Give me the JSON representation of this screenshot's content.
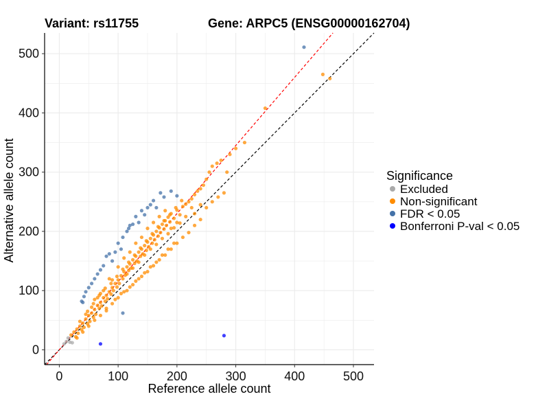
{
  "header": {
    "variant_title": "Variant: rs11755",
    "gene_title": "Gene: ARPC5 (ENSG00000162704)"
  },
  "chart_data": {
    "type": "scatter",
    "xlabel": "Reference allele count",
    "ylabel": "Alternative allele count",
    "xlim": [
      -25,
      535
    ],
    "ylim": [
      -25,
      535
    ],
    "x_ticks": [
      0,
      100,
      200,
      300,
      400,
      500
    ],
    "y_ticks": [
      0,
      100,
      200,
      300,
      400,
      500
    ],
    "grid": true,
    "legend_position": "right",
    "legend": {
      "title": "Significance",
      "entries": [
        {
          "label": "Excluded",
          "color": "#aaaaaa"
        },
        {
          "label": "Non-significant",
          "color": "#ff8c00"
        },
        {
          "label": "FDR < 0.05",
          "color": "#4472a8"
        },
        {
          "label": "Bonferroni P-val < 0.05",
          "color": "#0000ff"
        }
      ]
    },
    "reference_lines": [
      {
        "name": "identity",
        "slope": 1,
        "intercept": 0,
        "color": "#000000",
        "style": "dashed"
      },
      {
        "name": "fitted",
        "slope": 1.15,
        "intercept": 0,
        "color": "#ff0000",
        "style": "dashed"
      }
    ],
    "series": [
      {
        "name": "Excluded",
        "color": "#aaaaaa",
        "points": [
          [
            8,
            10
          ],
          [
            12,
            14
          ],
          [
            18,
            13
          ],
          [
            15,
            20
          ],
          [
            22,
            12
          ]
        ]
      },
      {
        "name": "Non-significant",
        "color": "#ff8c00",
        "points": [
          [
            20,
            25
          ],
          [
            25,
            30
          ],
          [
            28,
            22
          ],
          [
            30,
            35
          ],
          [
            32,
            28
          ],
          [
            35,
            40
          ],
          [
            38,
            34
          ],
          [
            40,
            45
          ],
          [
            42,
            38
          ],
          [
            45,
            52
          ],
          [
            48,
            44
          ],
          [
            50,
            58
          ],
          [
            52,
            48
          ],
          [
            55,
            62
          ],
          [
            58,
            55
          ],
          [
            60,
            68
          ],
          [
            62,
            60
          ],
          [
            65,
            75
          ],
          [
            68,
            70
          ],
          [
            70,
            80
          ],
          [
            72,
            74
          ],
          [
            75,
            88
          ],
          [
            78,
            82
          ],
          [
            80,
            92
          ],
          [
            82,
            86
          ],
          [
            85,
            98
          ],
          [
            88,
            94
          ],
          [
            90,
            105
          ],
          [
            92,
            100
          ],
          [
            95,
            112
          ],
          [
            98,
            106
          ],
          [
            100,
            118
          ],
          [
            102,
            112
          ],
          [
            105,
            125
          ],
          [
            108,
            120
          ],
          [
            110,
            132
          ],
          [
            112,
            126
          ],
          [
            115,
            140
          ],
          [
            118,
            134
          ],
          [
            120,
            145
          ],
          [
            122,
            138
          ],
          [
            125,
            152
          ],
          [
            128,
            146
          ],
          [
            130,
            158
          ],
          [
            132,
            150
          ],
          [
            135,
            165
          ],
          [
            138,
            158
          ],
          [
            140,
            170
          ],
          [
            142,
            162
          ],
          [
            145,
            176
          ],
          [
            148,
            168
          ],
          [
            150,
            182
          ],
          [
            152,
            174
          ],
          [
            155,
            188
          ],
          [
            158,
            180
          ],
          [
            160,
            194
          ],
          [
            162,
            186
          ],
          [
            165,
            200
          ],
          [
            168,
            192
          ],
          [
            170,
            206
          ],
          [
            172,
            198
          ],
          [
            175,
            212
          ],
          [
            178,
            204
          ],
          [
            180,
            218
          ],
          [
            182,
            210
          ],
          [
            185,
            224
          ],
          [
            188,
            216
          ],
          [
            190,
            230
          ],
          [
            195,
            222
          ],
          [
            200,
            236
          ],
          [
            205,
            228
          ],
          [
            210,
            242
          ],
          [
            215,
            246
          ],
          [
            220,
            250
          ],
          [
            225,
            255
          ],
          [
            230,
            262
          ],
          [
            235,
            268
          ],
          [
            240,
            272
          ],
          [
            245,
            278
          ],
          [
            250,
            288
          ],
          [
            255,
            300
          ],
          [
            260,
            310
          ],
          [
            268,
            315
          ],
          [
            275,
            320
          ],
          [
            285,
            300
          ],
          [
            290,
            330
          ],
          [
            300,
            340
          ],
          [
            315,
            350
          ],
          [
            350,
            408
          ],
          [
            448,
            465
          ],
          [
            460,
            458
          ],
          [
            80,
            70
          ],
          [
            95,
            85
          ],
          [
            105,
            95
          ],
          [
            115,
            100
          ],
          [
            125,
            110
          ],
          [
            135,
            120
          ],
          [
            145,
            130
          ],
          [
            155,
            140
          ],
          [
            165,
            148
          ],
          [
            175,
            160
          ],
          [
            185,
            170
          ],
          [
            195,
            180
          ],
          [
            60,
            85
          ],
          [
            70,
            95
          ],
          [
            85,
            120
          ],
          [
            100,
            140
          ],
          [
            110,
            155
          ],
          [
            120,
            165
          ],
          [
            130,
            180
          ],
          [
            140,
            190
          ],
          [
            150,
            205
          ],
          [
            160,
            215
          ],
          [
            170,
            225
          ],
          [
            180,
            235
          ],
          [
            45,
            60
          ],
          [
            55,
            72
          ],
          [
            65,
            88
          ],
          [
            75,
            100
          ],
          [
            90,
            118
          ],
          [
            50,
            40
          ],
          [
            60,
            50
          ],
          [
            70,
            58
          ],
          [
            80,
            66
          ],
          [
            90,
            78
          ],
          [
            100,
            88
          ],
          [
            110,
            98
          ],
          [
            120,
            106
          ],
          [
            130,
            116
          ],
          [
            140,
            124
          ],
          [
            150,
            132
          ],
          [
            160,
            142
          ],
          [
            170,
            152
          ],
          [
            180,
            160
          ],
          [
            190,
            170
          ],
          [
            200,
            180
          ],
          [
            210,
            190
          ],
          [
            220,
            198
          ],
          [
            230,
            210
          ],
          [
            240,
            220
          ],
          [
            115,
            128
          ],
          [
            125,
            138
          ],
          [
            135,
            148
          ],
          [
            145,
            160
          ],
          [
            155,
            170
          ],
          [
            165,
            178
          ],
          [
            175,
            188
          ],
          [
            185,
            196
          ],
          [
            195,
            206
          ],
          [
            205,
            214
          ],
          [
            118,
            148
          ],
          [
            128,
            160
          ],
          [
            138,
            172
          ],
          [
            148,
            184
          ],
          [
            158,
            196
          ],
          [
            168,
            208
          ],
          [
            178,
            218
          ],
          [
            188,
            228
          ],
          [
            198,
            240
          ],
          [
            208,
            252
          ],
          [
            30,
            20
          ],
          [
            40,
            30
          ],
          [
            35,
            48
          ],
          [
            48,
            65
          ],
          [
            58,
            78
          ],
          [
            68,
            92
          ],
          [
            78,
            104
          ],
          [
            88,
            112
          ],
          [
            98,
            124
          ],
          [
            108,
            136
          ],
          [
            250,
            240
          ],
          [
            260,
            250
          ],
          [
            270,
            258
          ],
          [
            280,
            265
          ],
          [
            230,
            230
          ],
          [
            240,
            245
          ],
          [
            215,
            225
          ],
          [
            225,
            240
          ],
          [
            200,
            215
          ],
          [
            190,
            205
          ]
        ]
      },
      {
        "name": "FDR < 0.05",
        "color": "#4472a8",
        "points": [
          [
            416,
            511
          ],
          [
            172,
            265
          ],
          [
            190,
            268
          ],
          [
            178,
            258
          ],
          [
            160,
            252
          ],
          [
            155,
            245
          ],
          [
            140,
            235
          ],
          [
            130,
            225
          ],
          [
            135,
            215
          ],
          [
            125,
            212
          ],
          [
            120,
            210
          ],
          [
            115,
            200
          ],
          [
            108,
            190
          ],
          [
            100,
            180
          ],
          [
            95,
            165
          ],
          [
            85,
            162
          ],
          [
            80,
            158
          ],
          [
            90,
            150
          ],
          [
            75,
            142
          ],
          [
            70,
            135
          ],
          [
            65,
            128
          ],
          [
            60,
            120
          ],
          [
            55,
            112
          ],
          [
            50,
            105
          ],
          [
            45,
            98
          ],
          [
            42,
            90
          ],
          [
            38,
            82
          ],
          [
            40,
            80
          ],
          [
            105,
            170
          ],
          [
            150,
            240
          ],
          [
            200,
            260
          ],
          [
            108,
            62
          ],
          [
            165,
            240
          ],
          [
            145,
            228
          ],
          [
            118,
            205
          ]
        ]
      },
      {
        "name": "Bonferroni P-val < 0.05",
        "color": "#0000ff",
        "points": [
          [
            70,
            10
          ],
          [
            280,
            24
          ]
        ]
      }
    ]
  }
}
